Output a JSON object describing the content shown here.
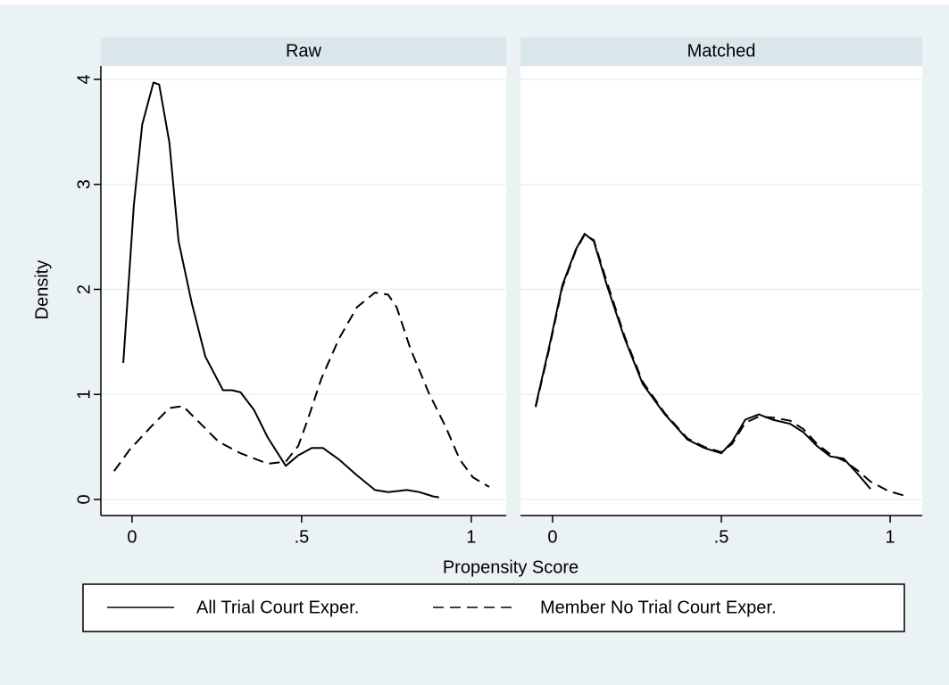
{
  "chart_data": {
    "type": "line",
    "y_label": "Density",
    "x_label": "Propensity Score",
    "ylim": [
      -0.153,
      4.127
    ],
    "yticks": [
      0,
      1,
      2,
      3,
      4
    ],
    "grid": true,
    "legend": [
      {
        "name": "All Trial Court Exper.",
        "color": "#000000",
        "dash": "solid"
      },
      {
        "name": "Member No Trial Court Exper.",
        "color": "#000000",
        "dash": "dashed"
      }
    ],
    "panels": [
      {
        "title": "Raw",
        "xlim": [
          -0.092,
          1.103
        ],
        "xticks": [
          0,
          {
            "value": 0.5,
            "label": ".5"
          },
          1
        ],
        "series": [
          {
            "x": [
              -0.026,
              0.005,
              0.03,
              0.063,
              0.08,
              0.11,
              0.137,
              0.176,
              0.216,
              0.268,
              0.295,
              0.32,
              0.36,
              0.4,
              0.453,
              0.49,
              0.53,
              0.563,
              0.61,
              0.663,
              0.716,
              0.755,
              0.81,
              0.847,
              0.887,
              0.905
            ],
            "values": [
              1.3,
              2.8,
              3.57,
              3.97,
              3.95,
              3.4,
              2.46,
              1.87,
              1.36,
              1.04,
              1.04,
              1.02,
              0.85,
              0.59,
              0.32,
              0.42,
              0.49,
              0.49,
              0.38,
              0.23,
              0.09,
              0.07,
              0.09,
              0.07,
              0.03,
              0.02
            ]
          },
          {
            "x": [
              -0.053,
              -0.008,
              0.058,
              0.11,
              0.15,
              0.19,
              0.255,
              0.32,
              0.4,
              0.453,
              0.49,
              0.518,
              0.558,
              0.61,
              0.663,
              0.716,
              0.755,
              0.78,
              0.82,
              0.874,
              0.926,
              0.966,
              1.005,
              1.053
            ],
            "values": [
              0.27,
              0.47,
              0.7,
              0.87,
              0.89,
              0.76,
              0.55,
              0.44,
              0.34,
              0.36,
              0.51,
              0.76,
              1.15,
              1.53,
              1.83,
              1.97,
              1.95,
              1.83,
              1.44,
              1.02,
              0.68,
              0.38,
              0.21,
              0.12
            ]
          }
        ]
      },
      {
        "title": "Matched",
        "xlim": [
          -0.095,
          1.095
        ],
        "xticks": [
          0,
          {
            "value": 0.5,
            "label": ".5"
          },
          1
        ],
        "series": [
          {
            "x": [
              -0.05,
              -0.011,
              0.029,
              0.069,
              0.095,
              0.122,
              0.161,
              0.214,
              0.267,
              0.333,
              0.4,
              0.45,
              0.5,
              0.532,
              0.571,
              0.611,
              0.651,
              0.704,
              0.743,
              0.783,
              0.823,
              0.862,
              0.902,
              0.942
            ],
            "values": [
              0.89,
              1.44,
              2.04,
              2.38,
              2.53,
              2.46,
              2.04,
              1.53,
              1.1,
              0.81,
              0.57,
              0.49,
              0.44,
              0.55,
              0.76,
              0.81,
              0.76,
              0.72,
              0.64,
              0.51,
              0.41,
              0.39,
              0.25,
              0.1
            ]
          },
          {
            "x": [
              -0.05,
              -0.011,
              0.029,
              0.069,
              0.095,
              0.122,
              0.161,
              0.214,
              0.267,
              0.333,
              0.4,
              0.45,
              0.5,
              0.532,
              0.571,
              0.611,
              0.651,
              0.704,
              0.743,
              0.783,
              0.823,
              0.862,
              0.902,
              0.942,
              0.995,
              1.05
            ],
            "values": [
              0.88,
              1.42,
              2.02,
              2.37,
              2.52,
              2.47,
              2.07,
              1.55,
              1.12,
              0.82,
              0.58,
              0.5,
              0.45,
              0.53,
              0.73,
              0.79,
              0.78,
              0.75,
              0.67,
              0.53,
              0.43,
              0.37,
              0.28,
              0.17,
              0.08,
              0.03
            ]
          }
        ]
      }
    ]
  }
}
